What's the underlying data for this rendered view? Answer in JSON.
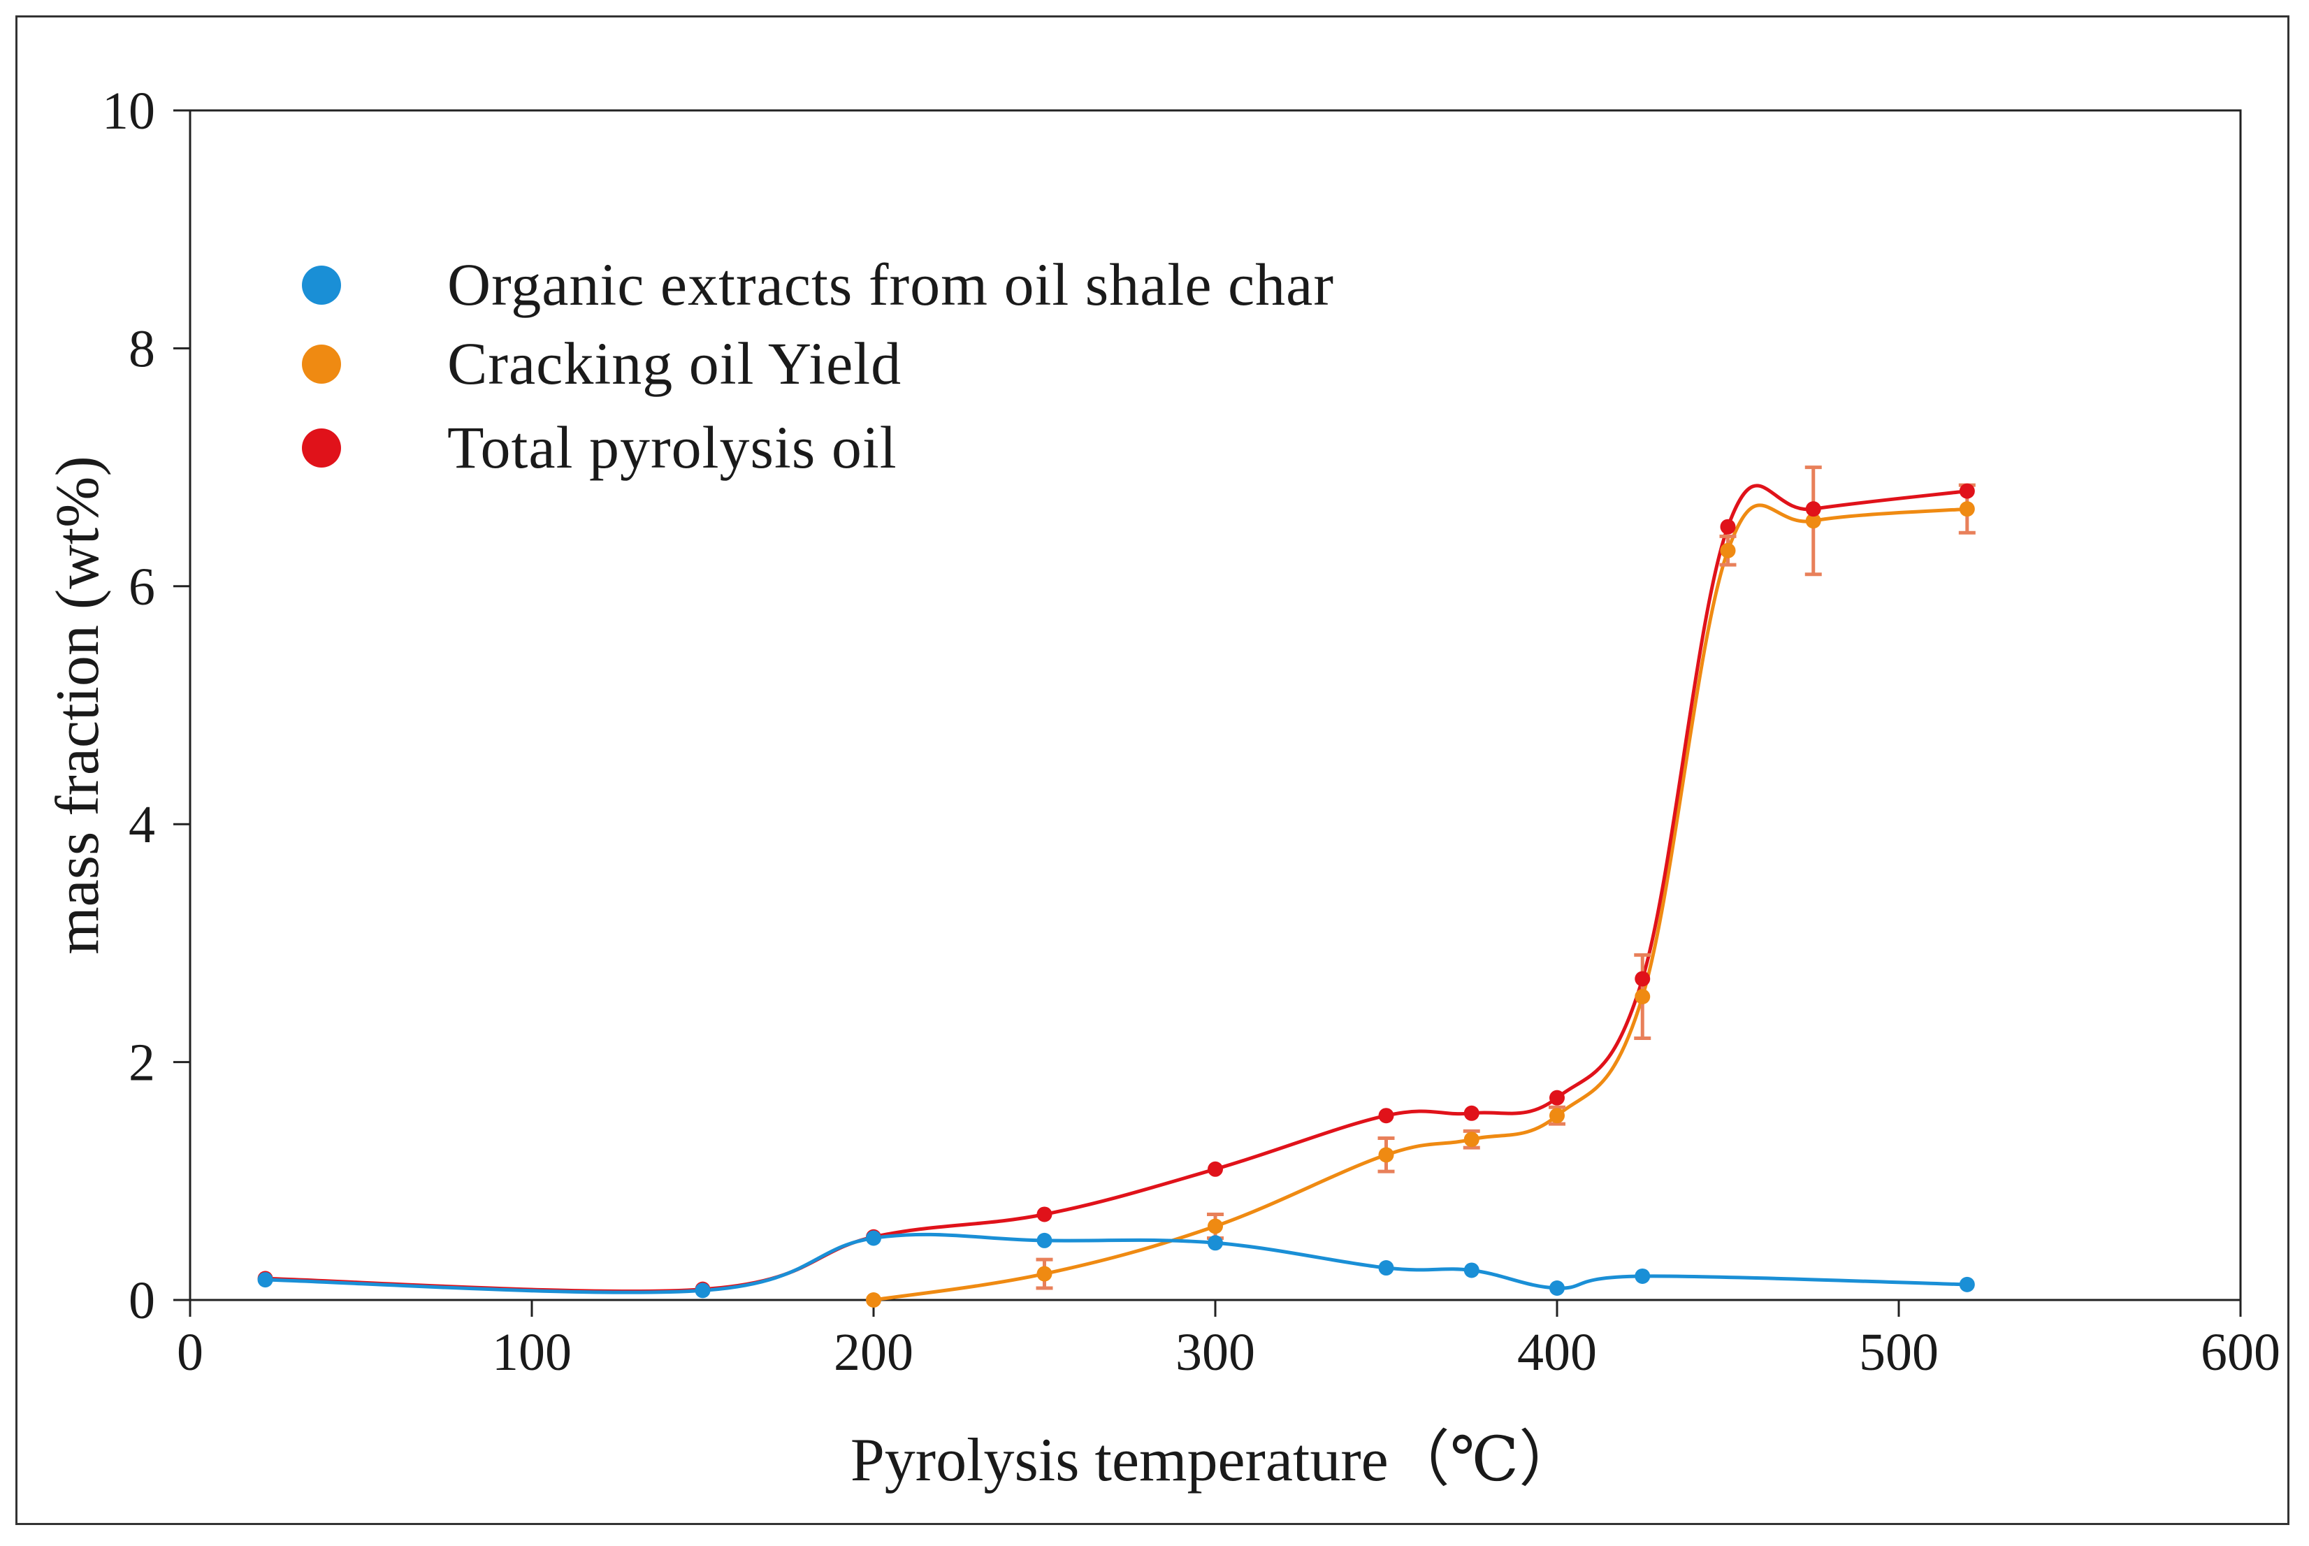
{
  "chart_data": {
    "type": "line",
    "title": "",
    "xlabel": "Pyrolysis temperature（℃）",
    "ylabel": "mass fraction (wt%)",
    "xlim": [
      0,
      600
    ],
    "ylim": [
      0,
      10
    ],
    "xticks": [
      0,
      100,
      200,
      300,
      400,
      500,
      600
    ],
    "yticks": [
      0,
      2,
      4,
      6,
      8,
      10
    ],
    "grid": false,
    "legend_position": "top-left",
    "series": [
      {
        "name": "Organic extracts from oil shale char",
        "color": "#1a8fd6",
        "x": [
          22,
          150,
          200,
          250,
          300,
          350,
          375,
          400,
          425,
          520
        ],
        "y": [
          0.17,
          0.08,
          0.52,
          0.5,
          0.48,
          0.27,
          0.25,
          0.1,
          0.2,
          0.13
        ]
      },
      {
        "name": "Cracking oil Yield",
        "color": "#ef8a12",
        "x": [
          200,
          250,
          300,
          350,
          375,
          400,
          425,
          450,
          475,
          520
        ],
        "y": [
          0,
          0.22,
          0.62,
          1.22,
          1.35,
          1.55,
          2.55,
          6.3,
          6.55,
          6.65
        ],
        "error": [
          0,
          0.12,
          0.1,
          0.14,
          0.07,
          0.07,
          0.35,
          0.12,
          0.45,
          0.2
        ]
      },
      {
        "name": "Total pyrolysis oil",
        "color": "#e0121a",
        "x": [
          22,
          150,
          200,
          250,
          300,
          350,
          375,
          400,
          425,
          450,
          475,
          520
        ],
        "y": [
          0.18,
          0.09,
          0.53,
          0.72,
          1.1,
          1.55,
          1.57,
          1.7,
          2.7,
          6.5,
          6.65,
          6.8
        ]
      }
    ]
  }
}
